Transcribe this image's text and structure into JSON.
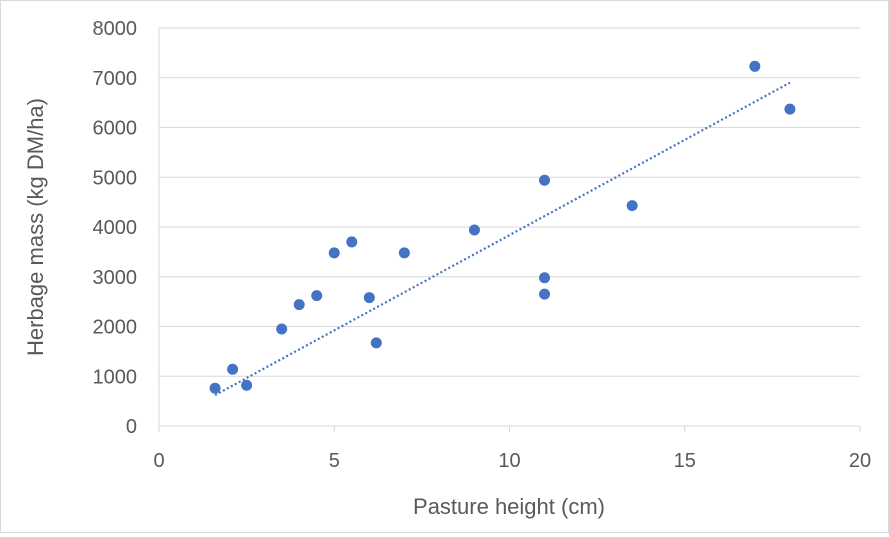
{
  "chart_data": {
    "type": "scatter",
    "title": "",
    "xlabel": "Pasture height (cm)",
    "ylabel": "Herbage mass (kg DM/ha)",
    "xlim": [
      0,
      20
    ],
    "ylim": [
      0,
      8000
    ],
    "x_ticks": [
      0,
      5,
      10,
      15,
      20
    ],
    "y_ticks": [
      0,
      1000,
      2000,
      3000,
      4000,
      5000,
      6000,
      7000,
      8000
    ],
    "grid": "horizontal",
    "legend": "none",
    "colors": {
      "points": "#4472c4",
      "trendline": "#4472c4",
      "grid": "#d9d9d9",
      "text": "#595959"
    },
    "series": [
      {
        "points": [
          {
            "x": 1.6,
            "y": 760
          },
          {
            "x": 2.1,
            "y": 1140
          },
          {
            "x": 2.5,
            "y": 820
          },
          {
            "x": 3.5,
            "y": 1950
          },
          {
            "x": 4.0,
            "y": 2440
          },
          {
            "x": 4.5,
            "y": 2620
          },
          {
            "x": 5.0,
            "y": 3480
          },
          {
            "x": 5.5,
            "y": 3700
          },
          {
            "x": 6.0,
            "y": 2580
          },
          {
            "x": 6.2,
            "y": 1670
          },
          {
            "x": 7.0,
            "y": 3480
          },
          {
            "x": 9.0,
            "y": 3940
          },
          {
            "x": 11.0,
            "y": 4940
          },
          {
            "x": 11.0,
            "y": 2980
          },
          {
            "x": 11.0,
            "y": 2650
          },
          {
            "x": 13.5,
            "y": 4430
          },
          {
            "x": 17.0,
            "y": 7230
          },
          {
            "x": 18.0,
            "y": 6370
          }
        ]
      }
    ],
    "trendline": {
      "type": "linear",
      "style": "dotted",
      "from": {
        "x": 1.6,
        "y": 620
      },
      "to": {
        "x": 18.0,
        "y": 6900
      }
    }
  }
}
